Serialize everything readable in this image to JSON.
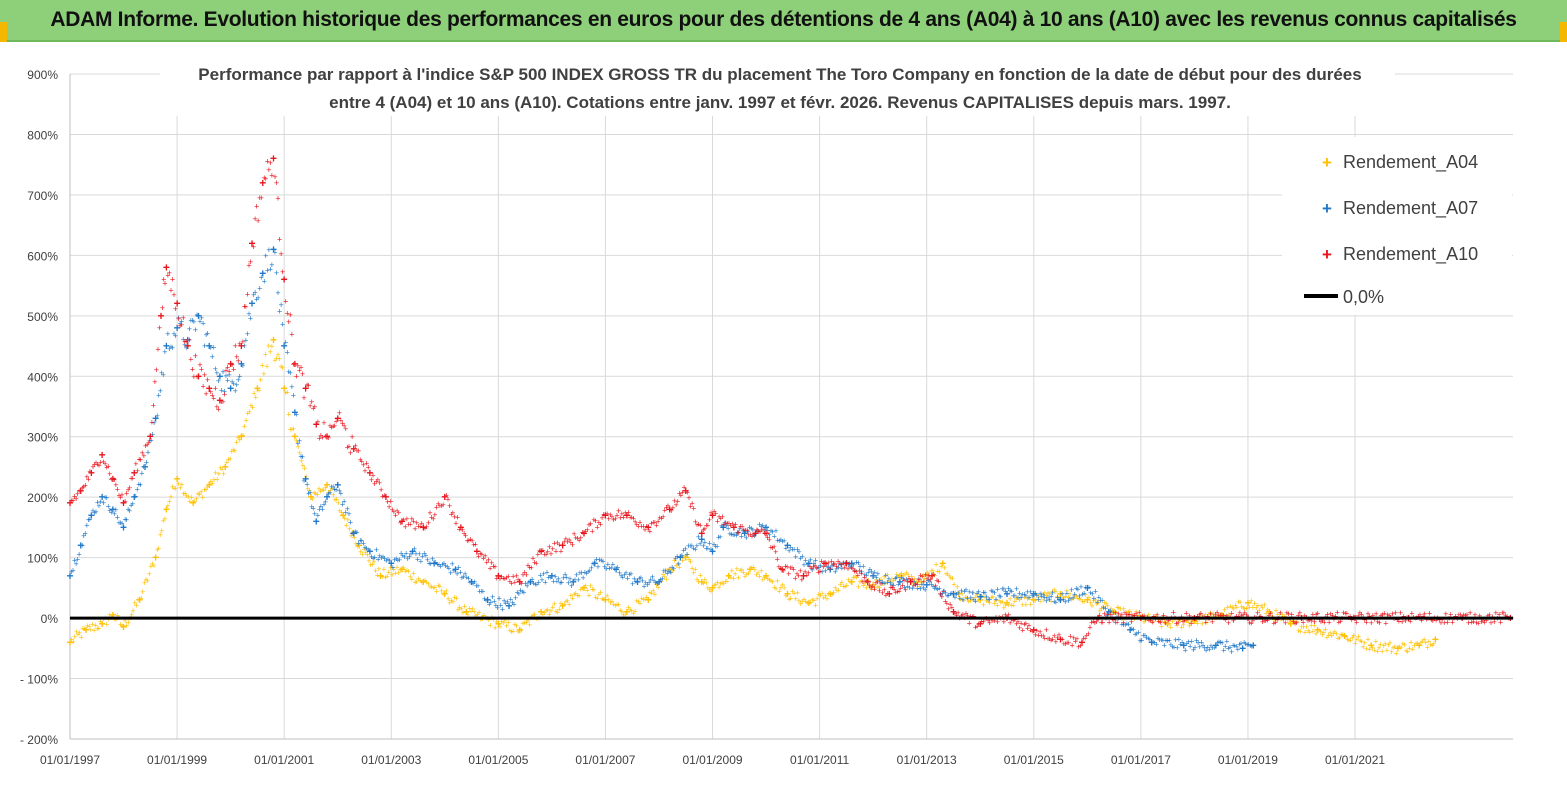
{
  "banner": {
    "title": "ADAM Informe. Evolution historique des performances en euros pour des détentions de 4 ans (A04) à 10 ans (A10) avec les revenus connus capitalisés"
  },
  "colors": {
    "banner_bg": "#8ecf7a",
    "A04": "#ffc000",
    "A07": "#1f78c8",
    "A10": "#e8141c",
    "zero": "#000000",
    "grid": "#d9d9d9"
  },
  "chart_data": {
    "type": "scatter",
    "title_line1": "Performance par rapport à l'indice S&P 500 INDEX GROSS TR  du placement The Toro Company en fonction de la date de début pour des durées",
    "title_line2": "entre 4 (A04) et 10 ans (A10). Cotations entre janv. 1997 et févr. 2026. Revenus CAPITALISES depuis mars. 1997.",
    "xlabel": "",
    "ylabel": "",
    "xlim": [
      1997.0,
      2023.95
    ],
    "ylim": [
      -200,
      900
    ],
    "y_ticks": [
      -200,
      -100,
      0,
      100,
      200,
      300,
      400,
      500,
      600,
      700,
      800,
      900
    ],
    "y_tick_labels": [
      "- 200%",
      "- 100%",
      "0%",
      "100%",
      "200%",
      "300%",
      "400%",
      "500%",
      "600%",
      "700%",
      "800%",
      "900%"
    ],
    "x_ticks": [
      1997,
      1999,
      2001,
      2003,
      2005,
      2007,
      2009,
      2011,
      2013,
      2015,
      2017,
      2019,
      2021
    ],
    "x_tick_labels": [
      "01/01/1997",
      "01/01/1999",
      "01/01/2001",
      "01/01/2003",
      "01/01/2005",
      "01/01/2007",
      "01/01/2009",
      "01/01/2011",
      "01/01/2013",
      "01/01/2015",
      "01/01/2017",
      "01/01/2019",
      "01/01/2021"
    ],
    "grid": true,
    "legend_position": "top-right",
    "legend": [
      "Rendement_A04",
      "Rendement_A07",
      "Rendement_A10",
      "0,0%"
    ],
    "series": [
      {
        "name": "Rendement_A04",
        "color": "#ffc000",
        "points": [
          [
            1997.0,
            -40
          ],
          [
            1997.3,
            -20
          ],
          [
            1997.6,
            -10
          ],
          [
            1997.8,
            5
          ],
          [
            1998.0,
            -15
          ],
          [
            1998.3,
            30
          ],
          [
            1998.6,
            100
          ],
          [
            1998.8,
            180
          ],
          [
            1999.0,
            230
          ],
          [
            1999.3,
            190
          ],
          [
            1999.6,
            220
          ],
          [
            1999.9,
            250
          ],
          [
            2000.2,
            300
          ],
          [
            2000.5,
            380
          ],
          [
            2000.8,
            460
          ],
          [
            2001.0,
            380
          ],
          [
            2001.2,
            300
          ],
          [
            2001.5,
            200
          ],
          [
            2001.8,
            220
          ],
          [
            2002.1,
            170
          ],
          [
            2002.4,
            120
          ],
          [
            2002.8,
            70
          ],
          [
            2003.2,
            80
          ],
          [
            2003.6,
            60
          ],
          [
            2004.0,
            40
          ],
          [
            2004.4,
            10
          ],
          [
            2004.7,
            0
          ],
          [
            2005.0,
            -10
          ],
          [
            2005.4,
            -20
          ],
          [
            2005.8,
            10
          ],
          [
            2006.2,
            20
          ],
          [
            2006.6,
            50
          ],
          [
            2007.0,
            30
          ],
          [
            2007.4,
            10
          ],
          [
            2007.8,
            30
          ],
          [
            2008.2,
            80
          ],
          [
            2008.5,
            100
          ],
          [
            2008.8,
            60
          ],
          [
            2009.0,
            50
          ],
          [
            2009.3,
            70
          ],
          [
            2009.7,
            80
          ],
          [
            2010.0,
            70
          ],
          [
            2010.4,
            40
          ],
          [
            2010.8,
            25
          ],
          [
            2011.2,
            40
          ],
          [
            2011.6,
            60
          ],
          [
            2012.0,
            55
          ],
          [
            2012.5,
            70
          ],
          [
            2012.9,
            60
          ],
          [
            2013.3,
            90
          ],
          [
            2013.6,
            40
          ],
          [
            2014.0,
            30
          ],
          [
            2014.5,
            25
          ],
          [
            2015.0,
            30
          ],
          [
            2015.5,
            40
          ],
          [
            2016.0,
            30
          ],
          [
            2016.5,
            10
          ],
          [
            2017.0,
            0
          ],
          [
            2017.5,
            -10
          ],
          [
            2018.0,
            -5
          ],
          [
            2018.5,
            5
          ],
          [
            2019.0,
            25
          ],
          [
            2019.4,
            10
          ],
          [
            2019.8,
            -10
          ],
          [
            2020.3,
            -20
          ],
          [
            2020.8,
            -30
          ],
          [
            2021.3,
            -45
          ],
          [
            2021.8,
            -50
          ],
          [
            2022.2,
            -45
          ],
          [
            2022.5,
            -35
          ]
        ]
      },
      {
        "name": "Rendement_A07",
        "color": "#1f78c8",
        "points": [
          [
            1997.0,
            70
          ],
          [
            1997.2,
            120
          ],
          [
            1997.4,
            170
          ],
          [
            1997.6,
            200
          ],
          [
            1997.8,
            180
          ],
          [
            1998.0,
            150
          ],
          [
            1998.2,
            200
          ],
          [
            1998.4,
            250
          ],
          [
            1998.6,
            330
          ],
          [
            1998.8,
            450
          ],
          [
            1999.0,
            480
          ],
          [
            1999.2,
            460
          ],
          [
            1999.4,
            500
          ],
          [
            1999.6,
            450
          ],
          [
            1999.8,
            400
          ],
          [
            2000.0,
            380
          ],
          [
            2000.2,
            420
          ],
          [
            2000.4,
            520
          ],
          [
            2000.6,
            570
          ],
          [
            2000.8,
            610
          ],
          [
            2001.0,
            450
          ],
          [
            2001.2,
            340
          ],
          [
            2001.4,
            230
          ],
          [
            2001.6,
            160
          ],
          [
            2001.8,
            200
          ],
          [
            2002.0,
            220
          ],
          [
            2002.3,
            140
          ],
          [
            2002.6,
            110
          ],
          [
            2003.0,
            90
          ],
          [
            2003.4,
            110
          ],
          [
            2003.8,
            90
          ],
          [
            2004.2,
            80
          ],
          [
            2004.5,
            60
          ],
          [
            2004.8,
            30
          ],
          [
            2005.2,
            20
          ],
          [
            2005.6,
            60
          ],
          [
            2006.0,
            70
          ],
          [
            2006.4,
            60
          ],
          [
            2006.8,
            90
          ],
          [
            2007.2,
            80
          ],
          [
            2007.6,
            60
          ],
          [
            2008.0,
            60
          ],
          [
            2008.4,
            100
          ],
          [
            2008.8,
            130
          ],
          [
            2009.0,
            110
          ],
          [
            2009.2,
            150
          ],
          [
            2009.6,
            140
          ],
          [
            2010.0,
            150
          ],
          [
            2010.4,
            120
          ],
          [
            2010.8,
            90
          ],
          [
            2011.2,
            80
          ],
          [
            2011.6,
            90
          ],
          [
            2012.0,
            70
          ],
          [
            2012.5,
            60
          ],
          [
            2013.0,
            55
          ],
          [
            2013.5,
            40
          ],
          [
            2014.0,
            35
          ],
          [
            2014.5,
            40
          ],
          [
            2015.0,
            40
          ],
          [
            2015.5,
            30
          ],
          [
            2016.0,
            50
          ],
          [
            2016.4,
            10
          ],
          [
            2016.8,
            -20
          ],
          [
            2017.2,
            -40
          ],
          [
            2017.8,
            -45
          ],
          [
            2018.4,
            -45
          ],
          [
            2018.9,
            -50
          ],
          [
            2019.1,
            -45
          ]
        ]
      },
      {
        "name": "Rendement_A10",
        "color": "#e8141c",
        "points": [
          [
            1997.0,
            190
          ],
          [
            1997.2,
            210
          ],
          [
            1997.4,
            240
          ],
          [
            1997.6,
            270
          ],
          [
            1997.8,
            230
          ],
          [
            1998.0,
            190
          ],
          [
            1998.2,
            240
          ],
          [
            1998.5,
            300
          ],
          [
            1998.7,
            500
          ],
          [
            1998.8,
            580
          ],
          [
            1999.0,
            520
          ],
          [
            1999.2,
            450
          ],
          [
            1999.4,
            400
          ],
          [
            1999.6,
            380
          ],
          [
            1999.8,
            360
          ],
          [
            2000.0,
            420
          ],
          [
            2000.2,
            450
          ],
          [
            2000.4,
            620
          ],
          [
            2000.6,
            720
          ],
          [
            2000.8,
            760
          ],
          [
            2001.0,
            560
          ],
          [
            2001.2,
            420
          ],
          [
            2001.4,
            380
          ],
          [
            2001.6,
            320
          ],
          [
            2001.8,
            300
          ],
          [
            2002.0,
            330
          ],
          [
            2002.3,
            280
          ],
          [
            2002.6,
            240
          ],
          [
            2002.9,
            200
          ],
          [
            2003.2,
            160
          ],
          [
            2003.6,
            150
          ],
          [
            2004.0,
            200
          ],
          [
            2004.3,
            150
          ],
          [
            2004.6,
            110
          ],
          [
            2005.0,
            70
          ],
          [
            2005.4,
            60
          ],
          [
            2005.8,
            110
          ],
          [
            2006.2,
            120
          ],
          [
            2006.6,
            140
          ],
          [
            2007.0,
            170
          ],
          [
            2007.4,
            170
          ],
          [
            2007.8,
            150
          ],
          [
            2008.2,
            180
          ],
          [
            2008.5,
            210
          ],
          [
            2008.8,
            140
          ],
          [
            2009.0,
            170
          ],
          [
            2009.4,
            150
          ],
          [
            2009.8,
            140
          ],
          [
            2010.0,
            140
          ],
          [
            2010.3,
            80
          ],
          [
            2010.7,
            70
          ],
          [
            2011.1,
            90
          ],
          [
            2011.5,
            90
          ],
          [
            2011.9,
            60
          ],
          [
            2012.3,
            40
          ],
          [
            2012.7,
            60
          ],
          [
            2013.1,
            70
          ],
          [
            2013.5,
            10
          ],
          [
            2014.0,
            -10
          ],
          [
            2014.5,
            0
          ],
          [
            2015.0,
            -20
          ],
          [
            2015.5,
            -35
          ],
          [
            2015.9,
            -40
          ],
          [
            2016.2,
            0
          ],
          [
            2017.0,
            0
          ],
          [
            2018.0,
            0
          ],
          [
            2019.0,
            0
          ],
          [
            2020.0,
            0
          ],
          [
            2021.0,
            0
          ],
          [
            2022.0,
            0
          ],
          [
            2023.0,
            0
          ],
          [
            2023.9,
            0
          ]
        ]
      }
    ],
    "reference_line": {
      "name": "0,0%",
      "y": 0
    }
  }
}
